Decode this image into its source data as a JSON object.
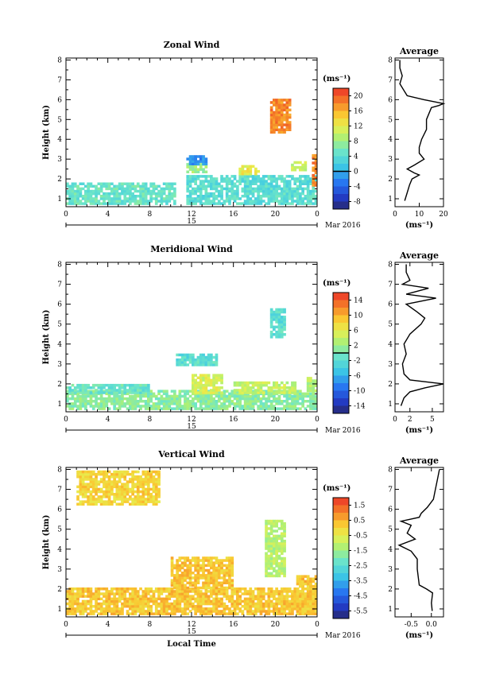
{
  "chart_data": [
    {
      "type": "heatmap",
      "title": "Zonal Wind",
      "ylabel": "Height (km)",
      "x_ticks": [
        "0",
        "4",
        "8",
        "12",
        "16",
        "20",
        "0"
      ],
      "y_ticks": [
        "1",
        "2",
        "3",
        "4",
        "5",
        "6",
        "7",
        "8"
      ],
      "xlim": [
        0,
        24
      ],
      "ylim": [
        0.6,
        8.1
      ],
      "date_day": "15",
      "date_label": "Mar 2016",
      "colorbar": {
        "unit": "(ms⁻¹)",
        "ticks": [
          "20",
          "16",
          "12",
          "8",
          "4",
          "0",
          "-4",
          "-8"
        ],
        "min": -10,
        "max": 22,
        "zero_line": 0
      },
      "regions": [
        {
          "x0": 0,
          "x1": 10.5,
          "y0": 0.7,
          "y1": 1.8,
          "v": 5
        },
        {
          "x0": 11.5,
          "x1": 24,
          "y0": 0.7,
          "y1": 2.2,
          "v": 4
        },
        {
          "x0": 11.5,
          "x1": 13.5,
          "y0": 2.3,
          "y1": 2.7,
          "v": 8
        },
        {
          "x0": 11.5,
          "x1": 13.5,
          "y0": 2.7,
          "y1": 3.1,
          "v": -2
        },
        {
          "x0": 16.5,
          "x1": 18.5,
          "y0": 2.2,
          "y1": 2.7,
          "v": 12
        },
        {
          "x0": 19.5,
          "x1": 21.5,
          "y0": 4.3,
          "y1": 6.0,
          "v": 18
        },
        {
          "x0": 21.5,
          "x1": 23.0,
          "y0": 2.4,
          "y1": 2.8,
          "v": 10
        },
        {
          "x0": 23.5,
          "x1": 24,
          "y0": 1.5,
          "y1": 3.2,
          "v": 18
        }
      ],
      "average": {
        "xlabel": "(ms⁻¹)",
        "x_ticks": [
          "0",
          "10",
          "20"
        ],
        "xlim": [
          0,
          20
        ],
        "heights": [
          0.9,
          1.3,
          1.7,
          2.0,
          2.2,
          2.3,
          2.5,
          2.7,
          3.0,
          3.3,
          3.6,
          4.0,
          4.5,
          5.0,
          5.3,
          5.6,
          5.7,
          5.8,
          6.0,
          6.2,
          6.4,
          6.8,
          7.2,
          7.6,
          8.0
        ],
        "values": [
          4,
          5,
          6,
          7,
          10,
          8,
          5,
          8,
          12,
          10,
          10,
          11,
          13,
          13,
          14,
          15,
          18,
          20,
          12,
          5,
          4,
          2,
          3,
          2,
          2
        ]
      }
    },
    {
      "type": "heatmap",
      "title": "Meridional Wind",
      "ylabel": "Height (km)",
      "x_ticks": [
        "0",
        "4",
        "8",
        "12",
        "16",
        "20",
        "0"
      ],
      "y_ticks": [
        "1",
        "2",
        "3",
        "4",
        "5",
        "6",
        "7",
        "8"
      ],
      "xlim": [
        0,
        24
      ],
      "ylim": [
        0.6,
        8.1
      ],
      "date_day": "15",
      "date_label": "Mar 2016",
      "colorbar": {
        "unit": "(ms⁻¹)",
        "ticks": [
          "14",
          "10",
          "6",
          "2",
          "-2",
          "-6",
          "-10",
          "-14"
        ],
        "min": -16,
        "max": 16,
        "zero_line": 0
      },
      "regions": [
        {
          "x0": 0,
          "x1": 24,
          "y0": 0.7,
          "y1": 1.6,
          "v": 1
        },
        {
          "x0": 0,
          "x1": 8,
          "y0": 1.5,
          "y1": 1.9,
          "v": -1
        },
        {
          "x0": 12,
          "x1": 15,
          "y0": 1.5,
          "y1": 2.4,
          "v": 5
        },
        {
          "x0": 16,
          "x1": 22,
          "y0": 1.5,
          "y1": 2.1,
          "v": 4
        },
        {
          "x0": 10.5,
          "x1": 14.5,
          "y0": 2.9,
          "y1": 3.5,
          "v": -2
        },
        {
          "x0": 19.5,
          "x1": 21,
          "y0": 4.3,
          "y1": 5.8,
          "v": -2
        },
        {
          "x0": 23,
          "x1": 24,
          "y0": 1.6,
          "y1": 2.3,
          "v": 3
        }
      ],
      "average": {
        "xlabel": "(ms⁻¹)",
        "x_ticks": [
          "0",
          "2",
          "5"
        ],
        "xlim": [
          0,
          6.5
        ],
        "heights": [
          0.9,
          1.3,
          1.6,
          1.8,
          2.0,
          2.2,
          2.5,
          3.0,
          3.5,
          4.0,
          4.5,
          5.0,
          5.3,
          5.6,
          6.0,
          6.3,
          6.5,
          6.8,
          7.0,
          7.2,
          7.6,
          8.0
        ],
        "values": [
          0.8,
          1.2,
          2.0,
          4.0,
          6.5,
          2.0,
          1.2,
          1.0,
          1.5,
          1.2,
          2.0,
          3.5,
          4.0,
          3.0,
          1.5,
          5.5,
          1.5,
          4.5,
          1.0,
          2.0,
          1.5,
          1.5
        ]
      }
    },
    {
      "type": "heatmap",
      "title": "Vertical Wind",
      "ylabel": "Height (km)",
      "xlabel": "Local Time",
      "x_ticks": [
        "0",
        "4",
        "8",
        "12",
        "16",
        "20",
        "0"
      ],
      "y_ticks": [
        "1",
        "2",
        "3",
        "4",
        "5",
        "6",
        "7",
        "8"
      ],
      "xlim": [
        0,
        24
      ],
      "ylim": [
        0.6,
        8.1
      ],
      "date_day": "15",
      "date_label": "Mar 2016",
      "colorbar": {
        "unit": "(ms⁻¹)",
        "ticks": [
          "1.5",
          "0.5",
          "-0.5",
          "-1.5",
          "-2.5",
          "-3.5",
          "-4.5",
          "-5.5"
        ],
        "min": -6.0,
        "max": 2.0,
        "zero_line": null
      },
      "regions": [
        {
          "x0": 0,
          "x1": 24,
          "y0": 0.7,
          "y1": 2.0,
          "v": 0.2
        },
        {
          "x0": 10,
          "x1": 16,
          "y0": 2.0,
          "y1": 3.6,
          "v": 0.2
        },
        {
          "x0": 19,
          "x1": 21,
          "y0": 2.6,
          "y1": 5.4,
          "v": -1.2
        },
        {
          "x0": 1,
          "x1": 9,
          "y0": 6.2,
          "y1": 7.9,
          "v": 0.0
        },
        {
          "x0": 22,
          "x1": 24,
          "y0": 0.7,
          "y1": 2.6,
          "v": 0.2
        }
      ],
      "average": {
        "xlabel": "(ms⁻¹)",
        "x_ticks": [
          "-0.5",
          "0.0"
        ],
        "xlim": [
          -0.9,
          0.3
        ],
        "heights": [
          0.9,
          1.3,
          1.8,
          2.0,
          2.2,
          3.0,
          3.5,
          3.9,
          4.2,
          4.5,
          4.8,
          5.2,
          5.4,
          5.6,
          5.8,
          6.1,
          6.5,
          7.0,
          7.5,
          8.0
        ],
        "values": [
          0.02,
          0.0,
          0.03,
          -0.12,
          -0.3,
          -0.35,
          -0.35,
          -0.5,
          -0.8,
          -0.4,
          -0.6,
          -0.5,
          -0.75,
          -0.3,
          -0.25,
          -0.1,
          0.05,
          0.1,
          0.15,
          0.2
        ]
      }
    }
  ]
}
